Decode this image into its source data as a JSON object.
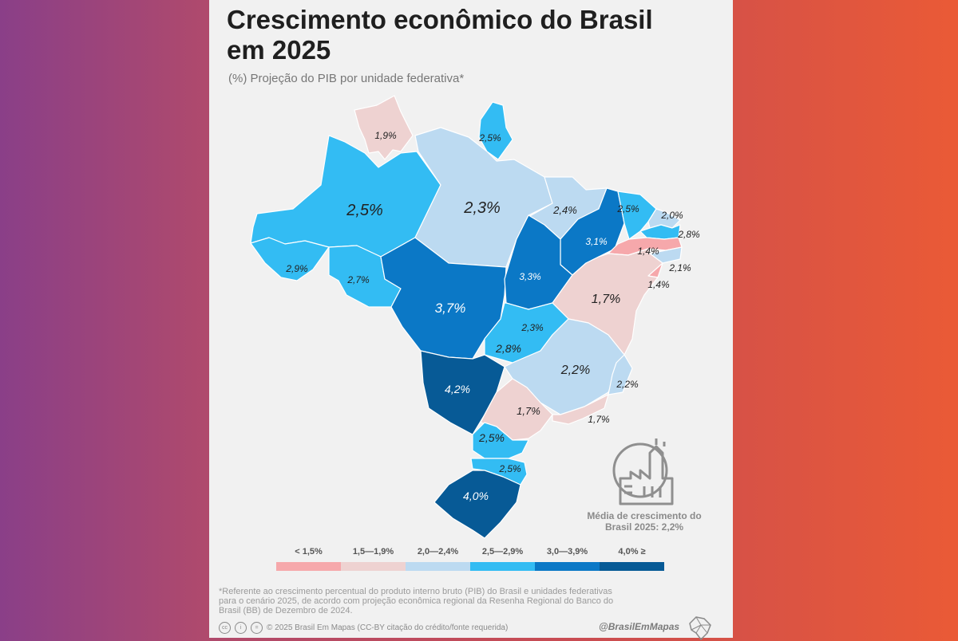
{
  "title": "Crescimento econômico do Brasil em 2025",
  "subtitle": "(%) Projeção do PIB por unidade federativa*",
  "average": "Média de crescimento do Brasil 2025: 2,2%",
  "colors": {
    "lt15": "#f6a8ab",
    "r15_19": "#eed2d1",
    "r20_24": "#bcdaf1",
    "r25_29": "#33bcf3",
    "r30_39": "#0b78c6",
    "ge40": "#075a96"
  },
  "legend": [
    {
      "label": "< 1,5%",
      "color": "#f6a8ab"
    },
    {
      "label": "1,5—1,9%",
      "color": "#eed2d1"
    },
    {
      "label": "2,0—2,4%",
      "color": "#bcdaf1"
    },
    {
      "label": "2,5—2,9%",
      "color": "#33bcf3"
    },
    {
      "label": "3,0—3,9%",
      "color": "#0b78c6"
    },
    {
      "label": "4,0% ≥",
      "color": "#075a96"
    }
  ],
  "states": [
    {
      "value": "1,9%",
      "color": "#eed2d1"
    },
    {
      "value": "2,5%",
      "color": "#33bcf3"
    },
    {
      "value": "2,5%",
      "color": "#33bcf3"
    },
    {
      "value": "2,3%",
      "color": "#bcdaf1"
    },
    {
      "value": "2,4%",
      "color": "#bcdaf1"
    },
    {
      "value": "2,5%",
      "color": "#33bcf3"
    },
    {
      "value": "2,0%",
      "color": "#bcdaf1"
    },
    {
      "value": "2,8%",
      "color": "#33bcf3"
    },
    {
      "value": "3,1%",
      "color": "#0b78c6"
    },
    {
      "value": "1,4%",
      "color": "#f6a8ab"
    },
    {
      "value": "2,1%",
      "color": "#bcdaf1"
    },
    {
      "value": "1,4%",
      "color": "#f6a8ab"
    },
    {
      "value": "2,9%",
      "color": "#33bcf3"
    },
    {
      "value": "2,7%",
      "color": "#33bcf3"
    },
    {
      "value": "3,7%",
      "color": "#0b78c6"
    },
    {
      "value": "3,3%",
      "color": "#0b78c6"
    },
    {
      "value": "1,7%",
      "color": "#eed2d1"
    },
    {
      "value": "2,3%",
      "color": "#bcdaf1"
    },
    {
      "value": "2,8%",
      "color": "#33bcf3"
    },
    {
      "value": "2,2%",
      "color": "#bcdaf1"
    },
    {
      "value": "4,2%",
      "color": "#075a96"
    },
    {
      "value": "2,2%",
      "color": "#bcdaf1"
    },
    {
      "value": "1,7%",
      "color": "#eed2d1"
    },
    {
      "value": "1,7%",
      "color": "#eed2d1"
    },
    {
      "value": "2,5%",
      "color": "#33bcf3"
    },
    {
      "value": "2,5%",
      "color": "#33bcf3"
    },
    {
      "value": "4,0%",
      "color": "#075a96"
    }
  ],
  "footnote": "*Referente ao crescimento percentual do produto interno bruto (PIB) do Brasil e unidades federativas para o cenário 2025, de acordo com projeção econômica regional da Resenha Regional do Banco do Brasil (BB) de Dezembro de 2024.",
  "copyright": "© 2025 Brasil Em Mapas (CC-BY citação do crédito/fonte requerida)",
  "handle": "@BrasilEmMapas"
}
